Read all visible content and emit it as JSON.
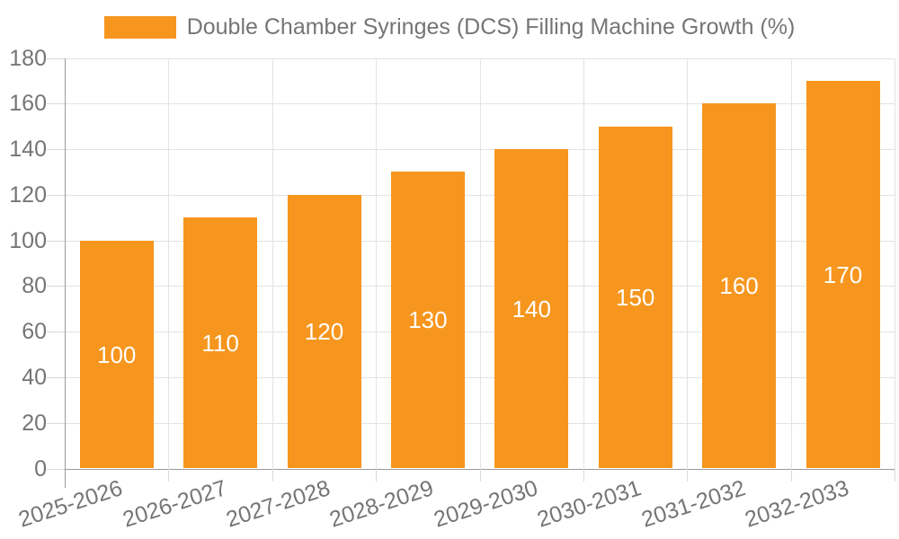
{
  "legend": {
    "series_label": "Double Chamber Syringes (DCS) Filling Machine Growth (%)"
  },
  "chart_data": {
    "type": "bar",
    "title": "Double Chamber Syringes (DCS) Filling Machine Growth (%)",
    "categories": [
      "2025-2026",
      "2026-2027",
      "2027-2028",
      "2028-2029",
      "2029-2030",
      "2030-2031",
      "2031-2032",
      "2032-2033"
    ],
    "values": [
      100,
      110,
      120,
      130,
      140,
      150,
      160,
      170
    ],
    "series": [
      {
        "name": "Double Chamber Syringes (DCS) Filling Machine Growth (%)",
        "values": [
          100,
          110,
          120,
          130,
          140,
          150,
          160,
          170
        ]
      }
    ],
    "xlabel": "",
    "ylabel": "",
    "ylim": [
      0,
      180
    ],
    "ytick_step": 20,
    "yticks": [
      0,
      20,
      40,
      60,
      80,
      100,
      120,
      140,
      160,
      180
    ],
    "grid": "both",
    "legend_position": "top-center",
    "bar_labels_inside": true,
    "x_label_rotation_deg": -18
  },
  "colors": {
    "bar": "#F6961E",
    "text": "#757575",
    "grid": "#e3e3e3",
    "axis": "#9a9a9a",
    "tick": "#d9d9d9",
    "bar_label": "#ffffff",
    "background": "#ffffff"
  }
}
